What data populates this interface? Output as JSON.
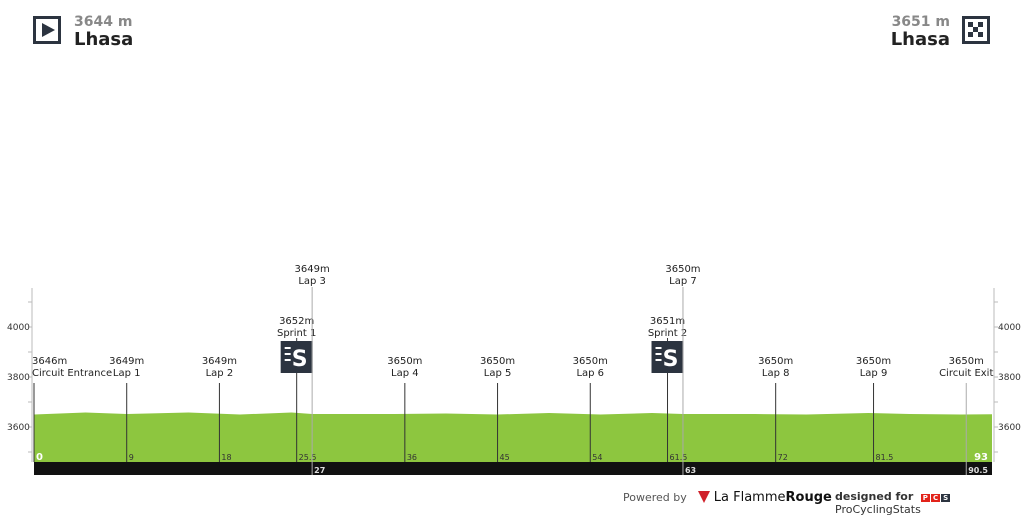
{
  "start": {
    "altitude": "3644 m",
    "city": "Lhasa",
    "icon": "play-icon"
  },
  "finish": {
    "altitude": "3651 m",
    "city": "Lhasa",
    "icon": "checkered-flag-icon"
  },
  "footer": {
    "powered_by": "Powered by",
    "brand1_a": "La Flamme",
    "brand1_b": "Rouge",
    "designed_for": "designed for",
    "brand2": "ProCyclingStats",
    "pcs": [
      "P",
      "C",
      "S"
    ]
  },
  "chart_data": {
    "type": "area",
    "total_km": 93,
    "y_ticks": [
      3600,
      3800,
      4000
    ],
    "ylim": [
      3450,
      4160
    ],
    "profile_color": "#8dc63f",
    "profile": [
      [
        0,
        3650
      ],
      [
        5,
        3658
      ],
      [
        9,
        3652
      ],
      [
        15,
        3658
      ],
      [
        20,
        3650
      ],
      [
        25,
        3658
      ],
      [
        27,
        3652
      ],
      [
        35,
        3652
      ],
      [
        40,
        3654
      ],
      [
        45,
        3650
      ],
      [
        50,
        3656
      ],
      [
        55,
        3650
      ],
      [
        60,
        3656
      ],
      [
        63,
        3652
      ],
      [
        70,
        3652
      ],
      [
        75,
        3650
      ],
      [
        81,
        3656
      ],
      [
        85,
        3652
      ],
      [
        90,
        3650
      ],
      [
        93,
        3651
      ]
    ],
    "markers": [
      {
        "km": "0",
        "pos": 0,
        "alt": "3646m",
        "label": "Circuit Entrance",
        "level": 0,
        "bottom": false
      },
      {
        "km": "9",
        "pos": 9,
        "alt": "3649m",
        "label": "Lap 1",
        "level": 0,
        "bottom": false
      },
      {
        "km": "18",
        "pos": 18,
        "alt": "3649m",
        "label": "Lap 2",
        "level": 0,
        "bottom": false
      },
      {
        "km": "25.5",
        "pos": 25.5,
        "alt": "3652m",
        "label": "Sprint 1",
        "level": 1,
        "bottom": false,
        "sprint": true
      },
      {
        "km": "27",
        "pos": 27,
        "alt": "3649m",
        "label": "Lap 3",
        "level": 2,
        "bottom": true
      },
      {
        "km": "36",
        "pos": 36,
        "alt": "3650m",
        "label": "Lap 4",
        "level": 0,
        "bottom": false
      },
      {
        "km": "45",
        "pos": 45,
        "alt": "3650m",
        "label": "Lap 5",
        "level": 0,
        "bottom": false
      },
      {
        "km": "54",
        "pos": 54,
        "alt": "3650m",
        "label": "Lap 6",
        "level": 0,
        "bottom": false
      },
      {
        "km": "61.5",
        "pos": 61.5,
        "alt": "3651m",
        "label": "Sprint 2",
        "level": 1,
        "bottom": false,
        "sprint": true
      },
      {
        "km": "63",
        "pos": 63,
        "alt": "3650m",
        "label": "Lap 7",
        "level": 2,
        "bottom": true
      },
      {
        "km": "72",
        "pos": 72,
        "alt": "3650m",
        "label": "Lap 8",
        "level": 0,
        "bottom": false
      },
      {
        "km": "81.5",
        "pos": 81.5,
        "alt": "3650m",
        "label": "Lap 9",
        "level": 0,
        "bottom": false
      },
      {
        "km": "90.5",
        "pos": 90.5,
        "alt": "3650m",
        "label": "Circuit Exit",
        "level": 0,
        "bottom": true
      }
    ],
    "end_km_label": "93",
    "sprint_icon": "sprint-icon"
  }
}
